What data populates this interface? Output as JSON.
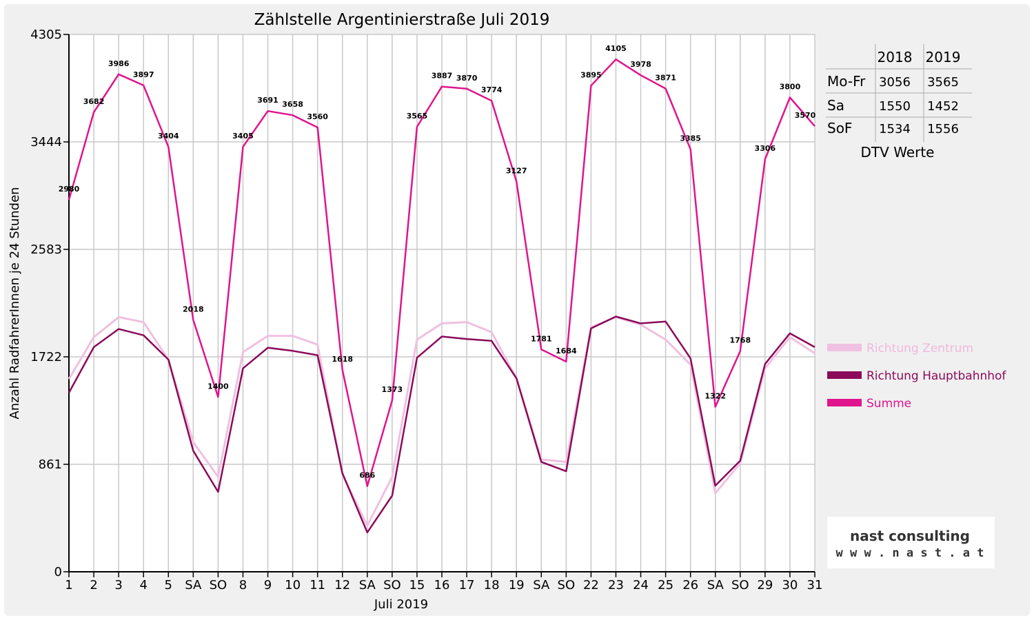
{
  "chart_data": {
    "type": "line",
    "title": "Zählstelle Argentinierstraße Juli 2019",
    "xlabel": "Juli 2019",
    "ylabel": "Anzahl RadfahrerInnen je 24 Stunden",
    "ylim": [
      0,
      4305
    ],
    "y_ticks": [
      "0",
      "861",
      "1722",
      "2583",
      "3444",
      "4305"
    ],
    "x_ticks": [
      "1",
      "2",
      "3",
      "4",
      "5",
      "SA",
      "SO",
      "8",
      "9",
      "10",
      "11",
      "12",
      "SA",
      "SO",
      "15",
      "16",
      "17",
      "18",
      "19",
      "SA",
      "SO",
      "22",
      "23",
      "24",
      "25",
      "26",
      "SA",
      "SO",
      "29",
      "30",
      "31"
    ],
    "x_tick_colors": {
      "SO": "#e00000",
      "default": "#000000"
    },
    "grid": true,
    "legend_position": "right",
    "series": [
      {
        "name": "Richtung Zentrum",
        "color": "#f0c0e0",
        "values": [
          1545,
          1880,
          2040,
          2000,
          1700,
          1040,
          760,
          1760,
          1890,
          1890,
          1820,
          780,
          370,
          760,
          1860,
          1990,
          2000,
          1920,
          1550,
          900,
          880,
          1960,
          2040,
          1980,
          1860,
          1660,
          630,
          870,
          1630,
          1880,
          1750
        ]
      },
      {
        "name": "Richtung Hauptbahnhof",
        "color": "#8b0a5a",
        "values": [
          1435,
          1800,
          1945,
          1895,
          1700,
          970,
          640,
          1630,
          1795,
          1770,
          1735,
          790,
          315,
          610,
          1715,
          1885,
          1865,
          1850,
          1550,
          880,
          805,
          1950,
          2045,
          1990,
          2005,
          1710,
          690,
          890,
          1665,
          1910,
          1800
        ]
      },
      {
        "name": "Summe",
        "color": "#e0148c",
        "values": [
          2980,
          3682,
          3986,
          3897,
          3404,
          2018,
          1400,
          3405,
          3691,
          3658,
          3560,
          1618,
          686,
          1373,
          3565,
          3887,
          3870,
          3774,
          3127,
          1781,
          1684,
          3895,
          4105,
          3978,
          3871,
          3385,
          1322,
          1768,
          3306,
          3800,
          3570
        ]
      }
    ],
    "data_labels": [
      "2980",
      "3682",
      "3986",
      "3897",
      "3404",
      "2018",
      "1400",
      "3405",
      "3691",
      "3658",
      "3560",
      "1618",
      "686",
      "1373",
      "3565",
      "3887",
      "3870",
      "3774",
      "3127",
      "1781",
      "1684",
      "3895",
      "4105",
      "3978",
      "3871",
      "3385",
      "1322",
      "1768",
      "3306",
      "3800",
      "3570"
    ]
  },
  "dtv_table": {
    "caption": "DTV Werte",
    "headers": [
      "2018",
      "2019"
    ],
    "rows": [
      {
        "label": "Mo-Fr",
        "v2018": "3056",
        "v2019": "3565"
      },
      {
        "label": "Sa",
        "v2018": "1550",
        "v2019": "1452"
      },
      {
        "label": "SoF",
        "v2018": "1534",
        "v2019": "1556"
      }
    ]
  },
  "logo": {
    "main": "nast consulting",
    "sub": "w w w . n a s t . a t"
  }
}
